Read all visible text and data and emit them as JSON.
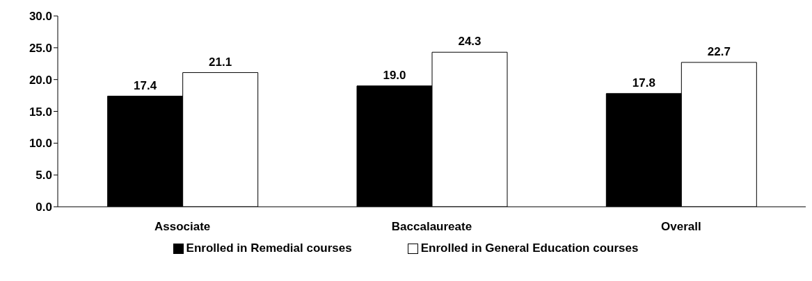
{
  "chart_data": {
    "type": "bar",
    "categories": [
      "Associate",
      "Baccalaureate",
      "Overall"
    ],
    "series": [
      {
        "name": "Enrolled in Remedial courses",
        "color": "#000000",
        "values": [
          17.4,
          19.0,
          17.8
        ],
        "value_labels": [
          "17.4",
          "19.0",
          "17.8"
        ]
      },
      {
        "name": "Enrolled in General Education courses",
        "color": "#ffffff",
        "values": [
          21.1,
          24.3,
          22.7
        ],
        "value_labels": [
          "21.1",
          "24.3",
          "22.7"
        ]
      }
    ],
    "ylim": [
      0,
      30
    ],
    "yticks": [
      {
        "value": 0,
        "label": "0.0"
      },
      {
        "value": 5,
        "label": "5.0"
      },
      {
        "value": 10,
        "label": "10.0"
      },
      {
        "value": 15,
        "label": "15.0"
      },
      {
        "value": 20,
        "label": "20.0"
      },
      {
        "value": 25,
        "label": "25.0"
      },
      {
        "value": 30,
        "label": "30.0"
      }
    ],
    "grid": false,
    "legend": "bottom"
  }
}
